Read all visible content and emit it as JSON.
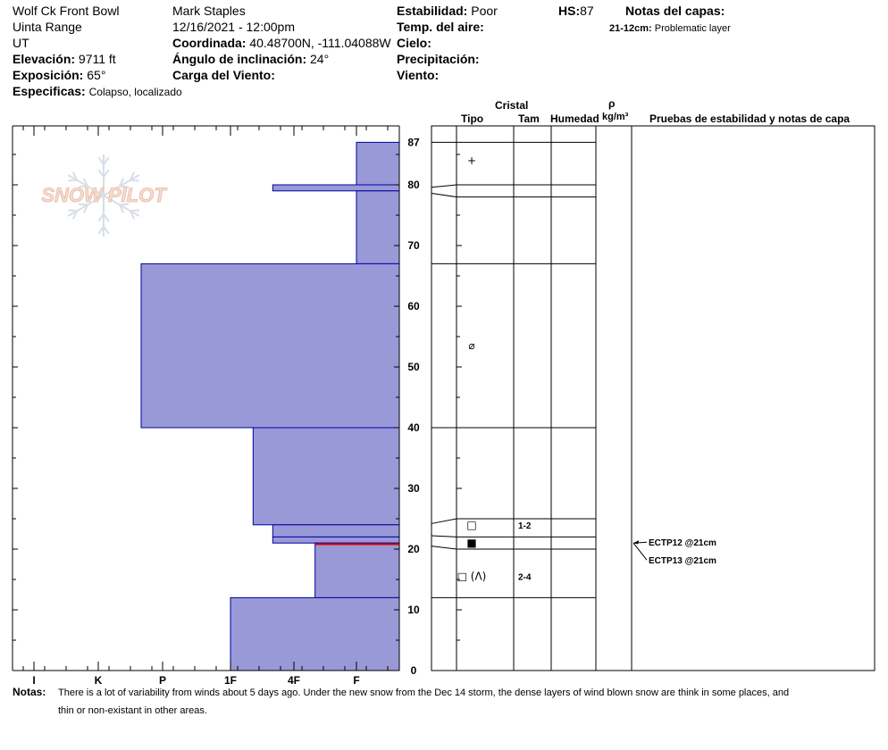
{
  "header": {
    "location": "Wolf Ck Front Bowl",
    "range": "Uinta Range",
    "state": "UT",
    "elevation_label": "Elevación:",
    "elevation_value": "9711 ft",
    "aspect_label": "Exposición:",
    "aspect_value": "65°",
    "specifics_label": "Especificas:",
    "specifics_value": "Colapso, localizado",
    "observer": "Mark Staples",
    "datetime": "12/16/2021 - 12:00pm",
    "coord_label": "Coordinada:",
    "coord_value": "40.48700N, -111.04088W",
    "slope_label": "Ángulo de inclinación:",
    "slope_value": "24°",
    "wind_load_label": "Carga del Viento:",
    "stability_label": "Estabilidad:",
    "stability_value": "Poor",
    "air_temp_label": "Temp. del aire:",
    "sky_label": "Cielo:",
    "precip_label": "Precipitación:",
    "wind_label": "Viento:",
    "hs_label": "HS:",
    "hs_value": "87",
    "layer_notes_title": "Notas del capas:",
    "layer_note_range": "21-12cm:",
    "layer_note_text": "Problematic layer"
  },
  "columns": {
    "crystal": "Cristal",
    "type": "Tipo",
    "size": "Tam",
    "moisture": "Humedad",
    "rho": "ρ",
    "density_unit": "kg/m³",
    "tests": "Pruebas de estabilidad y notas de capa"
  },
  "watermark": "SNOW PILOT",
  "notes_label": "Notas:",
  "notes_line1": "There is a lot of variability from winds about 5 days ago. Under the new snow from the Dec 14 storm, the dense layers of wind blown snow are think in some places, and",
  "notes_line2": "thin or non-existant in other areas.",
  "colors": {
    "hardness_fill": "#9999d8",
    "hardness_stroke": "#0000a0",
    "weak_layer": "#e00000"
  },
  "chart_data": {
    "type": "snow-profile",
    "hardness_categories": [
      "I",
      "K",
      "P",
      "1F",
      "4F",
      "F"
    ],
    "height_ticks": [
      0,
      10,
      20,
      30,
      40,
      50,
      60,
      70,
      80,
      87
    ],
    "hs": 87,
    "layers": [
      {
        "top": 87,
        "bottom": 80,
        "hardness": "F"
      },
      {
        "top": 80,
        "bottom": 79,
        "hardness": "4F-"
      },
      {
        "top": 79,
        "bottom": 67,
        "hardness": "F"
      },
      {
        "top": 67,
        "bottom": 40,
        "hardness": "P-"
      },
      {
        "top": 40,
        "bottom": 24,
        "hardness": "1F+"
      },
      {
        "top": 24,
        "bottom": 22,
        "hardness": "4F-"
      },
      {
        "top": 22,
        "bottom": 21,
        "hardness": "4F-"
      },
      {
        "top": 21,
        "bottom": 12,
        "hardness": "4F+"
      },
      {
        "top": 12,
        "bottom": 0,
        "hardness": "1F"
      }
    ],
    "weak_layer_height": 20.8,
    "layer_boundaries": [
      87,
      80,
      78,
      67,
      40,
      25,
      22,
      20,
      12
    ],
    "crystals": [
      {
        "height": 84,
        "symbol": "+",
        "size": ""
      },
      {
        "height": 53.5,
        "symbol": "⌀",
        "size": ""
      },
      {
        "height": 24,
        "symbol": "□",
        "size": "1-2"
      },
      {
        "height": 21,
        "symbol": "■",
        "size": ""
      },
      {
        "height": 15.5,
        "symbol": "□ (Λ)",
        "size": "2-4"
      }
    ],
    "tests": [
      {
        "label": "ECTP12 @21cm",
        "height": 21
      },
      {
        "label": "ECTP13 @21cm",
        "height": 21
      }
    ]
  }
}
